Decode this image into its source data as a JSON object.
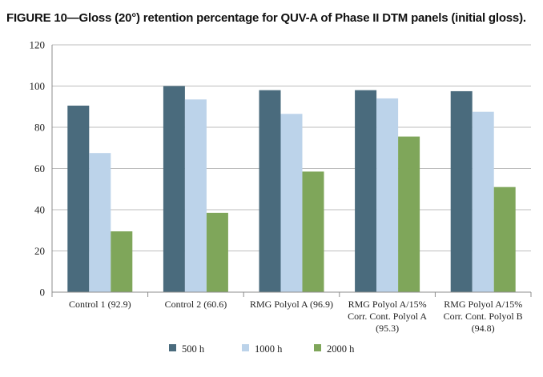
{
  "title": "FIGURE 10—Gloss (20°) retention percentage for QUV-A of Phase II DTM panels (initial gloss).",
  "chart_data": {
    "type": "bar",
    "title": "FIGURE 10—Gloss (20°) retention percentage for QUV-A of Phase II DTM panels (initial gloss).",
    "xlabel": "",
    "ylabel": "",
    "ylim": [
      0,
      120
    ],
    "yticks": [
      0,
      20,
      40,
      60,
      80,
      100,
      120
    ],
    "grid": true,
    "legend_position": "bottom",
    "categories": [
      [
        "Control 1 (92.9)"
      ],
      [
        "Control 2 (60.6)"
      ],
      [
        "RMG Polyol A (96.9)"
      ],
      [
        "RMG Polyol A/15%",
        "Corr. Cont. Polyol A",
        "(95.3)"
      ],
      [
        "RMG Polyol A/15%",
        "Corr. Cont. Polyol B",
        "(94.8)"
      ]
    ],
    "series": [
      {
        "name": "500 h",
        "color": "#4a6b7d",
        "values": [
          90.5,
          100,
          98,
          98,
          97.5
        ]
      },
      {
        "name": "1000 h",
        "color": "#bcd3ea",
        "values": [
          67.5,
          93.5,
          86.5,
          94,
          87.5
        ]
      },
      {
        "name": "2000 h",
        "color": "#7fa65a",
        "values": [
          29.5,
          38.5,
          58.5,
          75.5,
          51
        ]
      }
    ]
  }
}
